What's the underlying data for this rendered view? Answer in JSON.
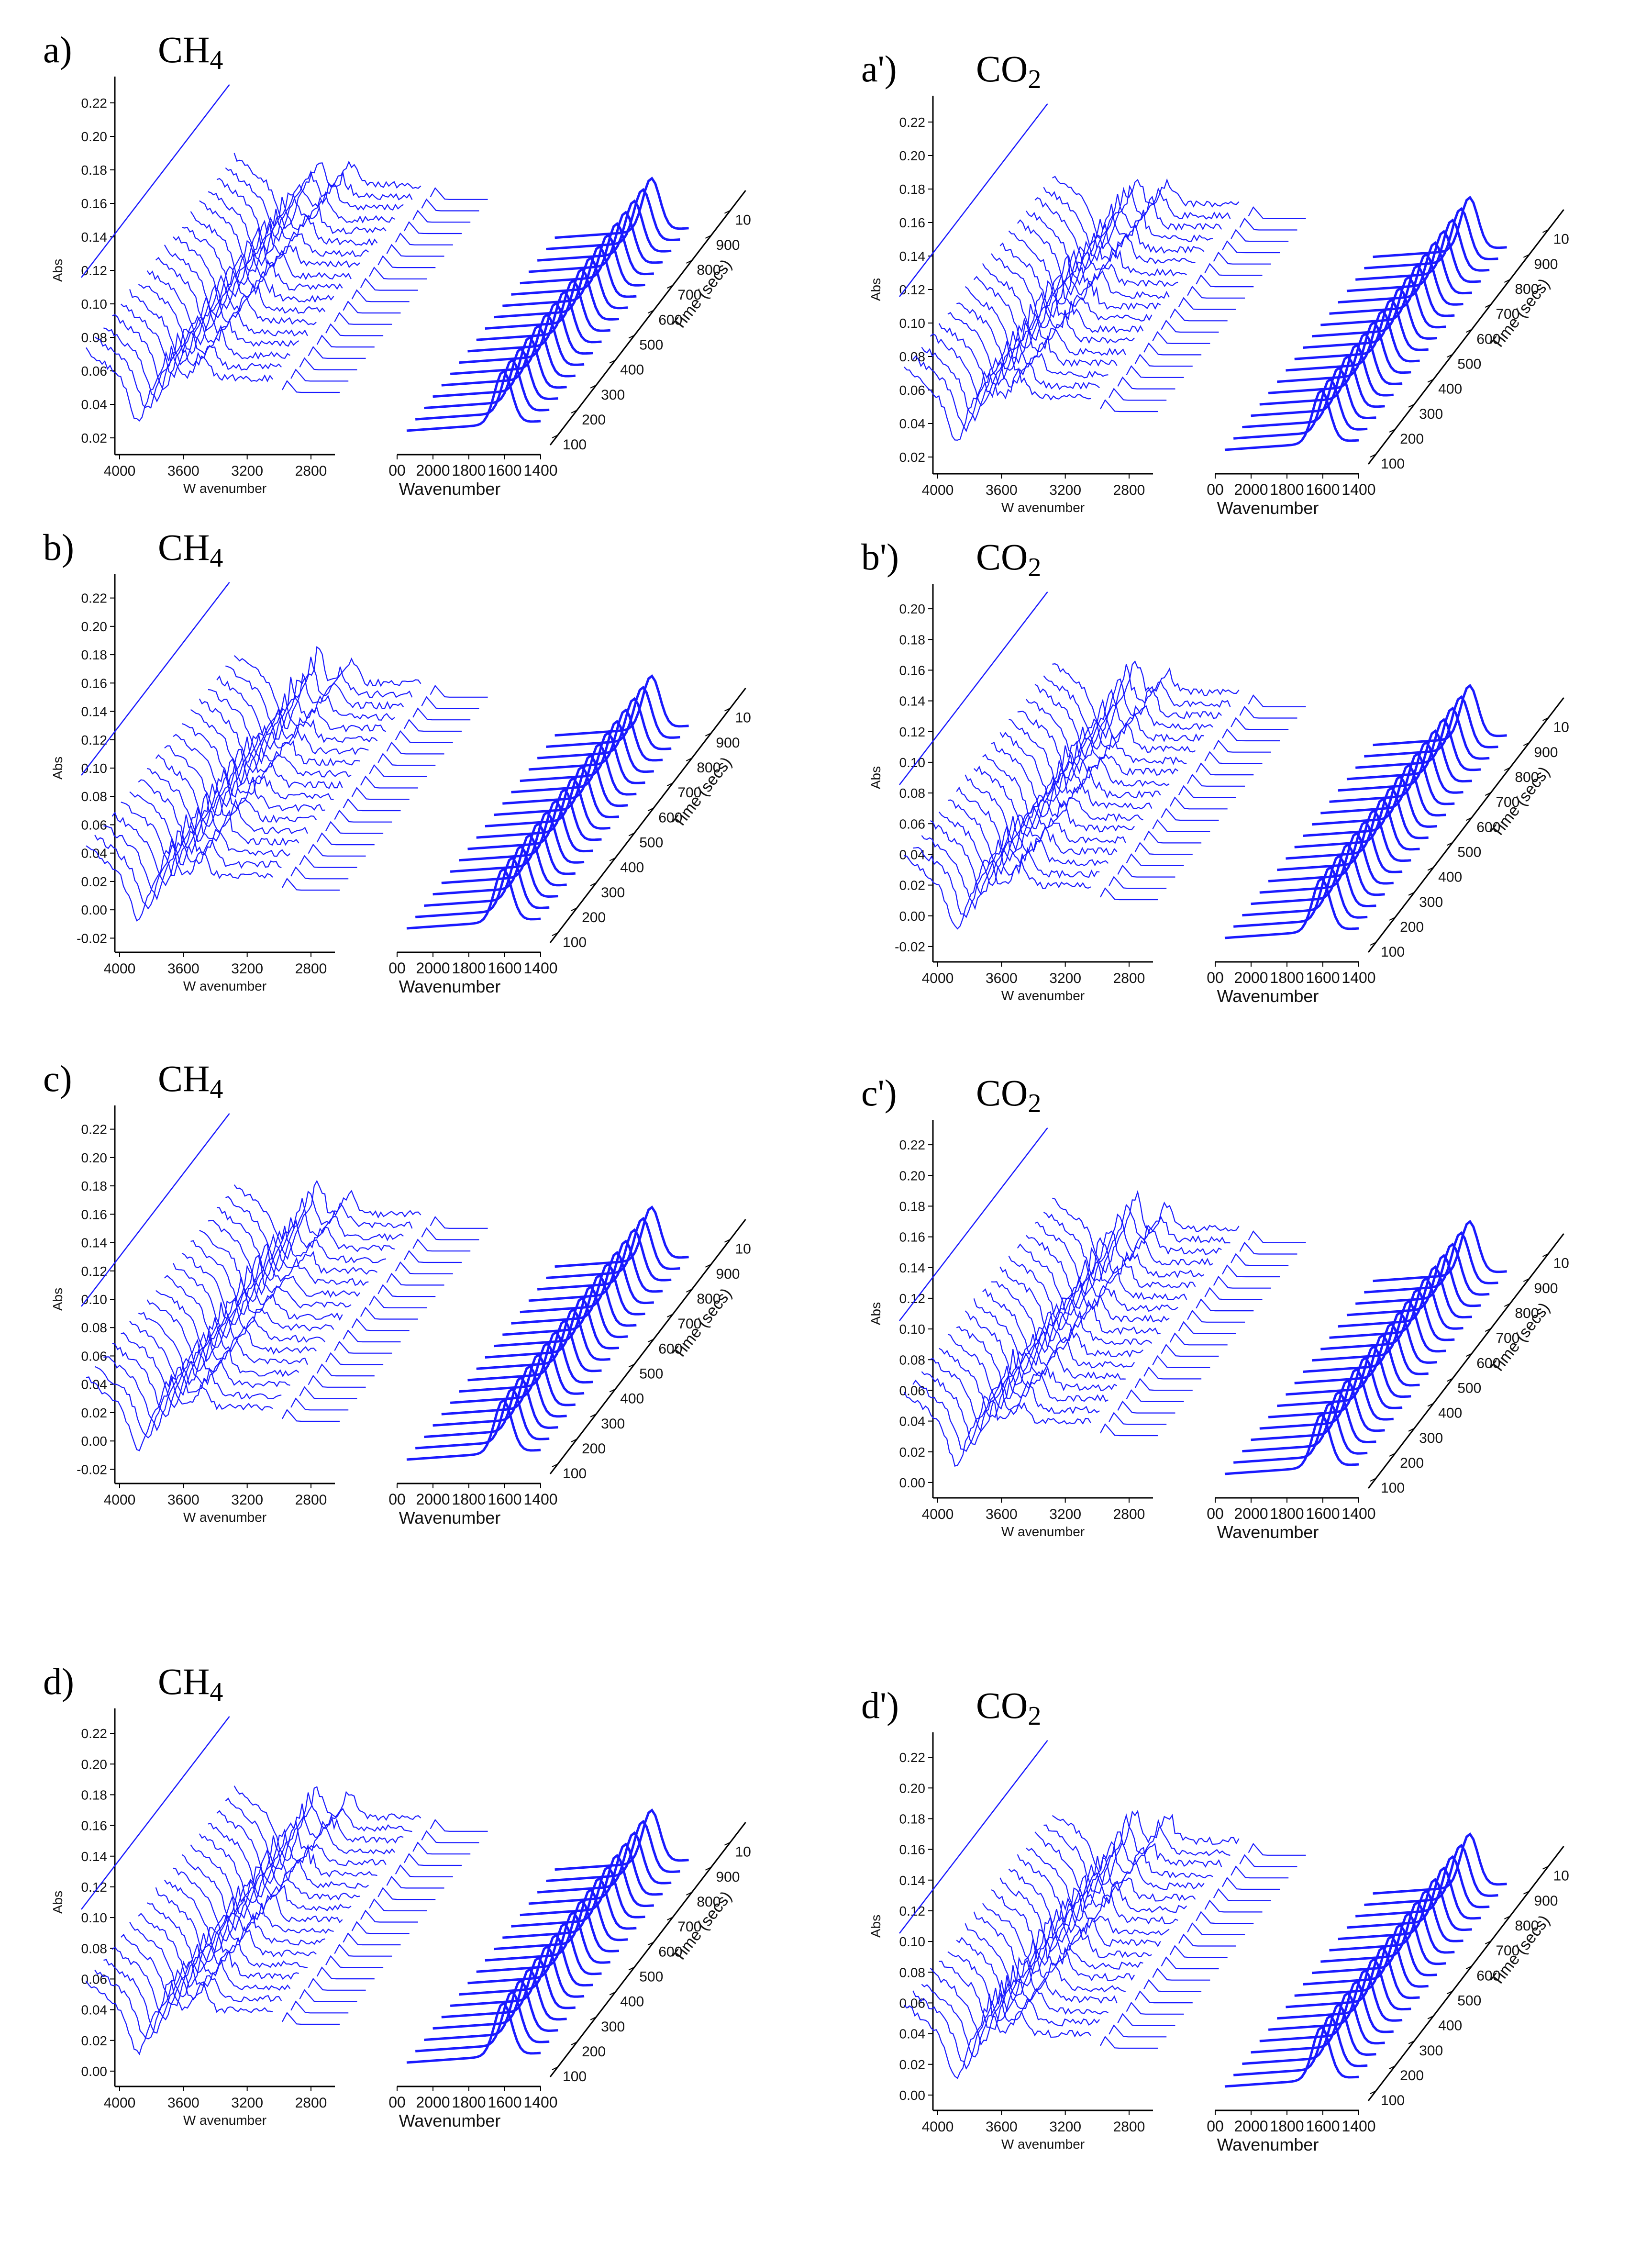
{
  "chart_data": [
    {
      "type": "waterfall",
      "panel_label": "a)",
      "title": "CH4",
      "ylabel": "Abs",
      "xlabel_left": "W avenumber",
      "xlabel_right": "Wavenumber",
      "zlabel": "Time (secs)",
      "yticks": [
        "0.02",
        "0.04",
        "0.06",
        "0.08",
        "0.10",
        "0.12",
        "0.14",
        "0.16",
        "0.18",
        "0.20",
        "0.22"
      ],
      "xticks_left": [
        "4000",
        "3600",
        "3200",
        "2800"
      ],
      "xticks_right": [
        "00",
        "2000",
        "1800",
        "1600",
        "1400"
      ],
      "zticks": [
        "100",
        "200",
        "300",
        "400",
        "500",
        "600",
        "700",
        "800",
        "900",
        "10"
      ],
      "series_count": 18,
      "ylim": [
        0.01,
        0.23
      ]
    },
    {
      "type": "waterfall",
      "panel_label": "a')",
      "title": "CO2",
      "ylabel": "Abs",
      "xlabel_left": "W avenumber",
      "xlabel_right": "Wavenumber",
      "zlabel": "Time (secs)",
      "yticks": [
        "0.02",
        "0.04",
        "0.06",
        "0.08",
        "0.10",
        "0.12",
        "0.14",
        "0.16",
        "0.18",
        "0.20",
        "0.22"
      ],
      "xticks_left": [
        "4000",
        "3600",
        "3200",
        "2800"
      ],
      "xticks_right": [
        "00",
        "2000",
        "1800",
        "1600",
        "1400"
      ],
      "zticks": [
        "100",
        "200",
        "300",
        "400",
        "500",
        "600",
        "700",
        "800",
        "900",
        "10"
      ],
      "series_count": 18,
      "ylim": [
        0.01,
        0.23
      ]
    },
    {
      "type": "waterfall",
      "panel_label": "b)",
      "title": "CH4",
      "ylabel": "Abs",
      "xlabel_left": "W avenumber",
      "xlabel_right": "Wavenumber",
      "zlabel": "Time (secs)",
      "yticks": [
        "-0.02",
        "0.00",
        "0.02",
        "0.04",
        "0.06",
        "0.08",
        "0.10",
        "0.12",
        "0.14",
        "0.16",
        "0.18",
        "0.20",
        "0.22"
      ],
      "xticks_left": [
        "4000",
        "3600",
        "3200",
        "2800"
      ],
      "xticks_right": [
        "00",
        "2000",
        "1800",
        "1600",
        "1400"
      ],
      "zticks": [
        "100",
        "200",
        "300",
        "400",
        "500",
        "600",
        "700",
        "800",
        "900",
        "10"
      ],
      "series_count": 18,
      "ylim": [
        -0.03,
        0.23
      ]
    },
    {
      "type": "waterfall",
      "panel_label": "b')",
      "title": "CO2",
      "ylabel": "Abs",
      "xlabel_left": "W avenumber",
      "xlabel_right": "Wavenumber",
      "zlabel": "Time (secs)",
      "yticks": [
        "-0.02",
        "0.00",
        "0.02",
        "0.04",
        "0.06",
        "0.08",
        "0.10",
        "0.12",
        "0.14",
        "0.16",
        "0.18",
        "0.20"
      ],
      "xticks_left": [
        "4000",
        "3600",
        "3200",
        "2800"
      ],
      "xticks_right": [
        "00",
        "2000",
        "1800",
        "1600",
        "1400"
      ],
      "zticks": [
        "100",
        "200",
        "300",
        "400",
        "500",
        "600",
        "700",
        "800",
        "900",
        "10"
      ],
      "series_count": 18,
      "ylim": [
        -0.03,
        0.21
      ]
    },
    {
      "type": "waterfall",
      "panel_label": "c)",
      "title": "CH4",
      "ylabel": "Abs",
      "xlabel_left": "W avenumber",
      "xlabel_right": "Wavenumber",
      "zlabel": "Time (secs)",
      "yticks": [
        "-0.02",
        "0.00",
        "0.02",
        "0.04",
        "0.06",
        "0.08",
        "0.10",
        "0.12",
        "0.14",
        "0.16",
        "0.18",
        "0.20",
        "0.22"
      ],
      "xticks_left": [
        "4000",
        "3600",
        "3200",
        "2800"
      ],
      "xticks_right": [
        "00",
        "2000",
        "1800",
        "1600",
        "1400"
      ],
      "zticks": [
        "100",
        "200",
        "300",
        "400",
        "500",
        "600",
        "700",
        "800",
        "900",
        "10"
      ],
      "series_count": 18,
      "ylim": [
        -0.03,
        0.23
      ]
    },
    {
      "type": "waterfall",
      "panel_label": "c')",
      "title": "CO2",
      "ylabel": "Abs",
      "xlabel_left": "W avenumber",
      "xlabel_right": "Wavenumber",
      "zlabel": "Time (secs)",
      "yticks": [
        "0.00",
        "0.02",
        "0.04",
        "0.06",
        "0.08",
        "0.10",
        "0.12",
        "0.14",
        "0.16",
        "0.18",
        "0.20",
        "0.22"
      ],
      "xticks_left": [
        "4000",
        "3600",
        "3200",
        "2800"
      ],
      "xticks_right": [
        "00",
        "2000",
        "1800",
        "1600",
        "1400"
      ],
      "zticks": [
        "100",
        "200",
        "300",
        "400",
        "500",
        "600",
        "700",
        "800",
        "900",
        "10"
      ],
      "series_count": 18,
      "ylim": [
        -0.01,
        0.23
      ]
    },
    {
      "type": "waterfall",
      "panel_label": "d)",
      "title": "CH4",
      "ylabel": "Abs",
      "xlabel_left": "W avenumber",
      "xlabel_right": "Wavenumber",
      "zlabel": "Time (secs)",
      "yticks": [
        "0.00",
        "0.02",
        "0.04",
        "0.06",
        "0.08",
        "0.10",
        "0.12",
        "0.14",
        "0.16",
        "0.18",
        "0.20",
        "0.22"
      ],
      "xticks_left": [
        "4000",
        "3600",
        "3200",
        "2800"
      ],
      "xticks_right": [
        "00",
        "2000",
        "1800",
        "1600",
        "1400"
      ],
      "zticks": [
        "100",
        "200",
        "300",
        "400",
        "500",
        "600",
        "700",
        "800",
        "900",
        "10"
      ],
      "series_count": 18,
      "ylim": [
        -0.01,
        0.23
      ]
    },
    {
      "type": "waterfall",
      "panel_label": "d')",
      "title": "CO2",
      "ylabel": "Abs",
      "xlabel_left": "W avenumber",
      "xlabel_right": "Wavenumber",
      "zlabel": "Time (secs)",
      "yticks": [
        "0.00",
        "0.02",
        "0.04",
        "0.06",
        "0.08",
        "0.10",
        "0.12",
        "0.14",
        "0.16",
        "0.18",
        "0.20",
        "0.22"
      ],
      "xticks_left": [
        "4000",
        "3600",
        "3200",
        "2800"
      ],
      "xticks_right": [
        "00",
        "2000",
        "1800",
        "1600",
        "1400"
      ],
      "zticks": [
        "100",
        "200",
        "300",
        "400",
        "500",
        "600",
        "700",
        "800",
        "900",
        "10"
      ],
      "series_count": 18,
      "ylim": [
        -0.01,
        0.23
      ]
    }
  ],
  "style": {
    "line_color": "#1a1aff",
    "axis_color": "#000000"
  }
}
